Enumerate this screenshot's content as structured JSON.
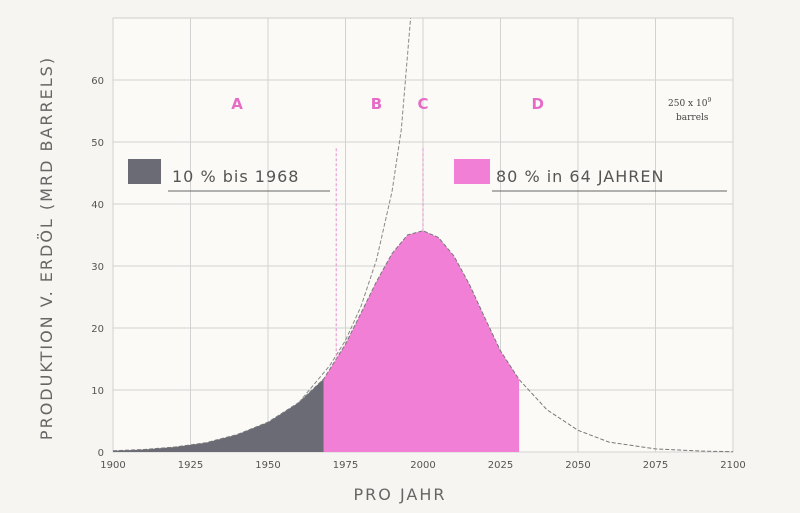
{
  "chart_data": {
    "type": "area",
    "xlabel": "PRO JAHR",
    "ylabel": "PRODUKTION V. ERDÖL (MRD BARRELS)",
    "xlim": [
      1900,
      2100
    ],
    "ylim": [
      0,
      70
    ],
    "x_ticks": [
      "1900",
      "1925",
      "1950",
      "1975",
      "2000",
      "2025",
      "2050",
      "2075",
      "2100"
    ],
    "y_ticks": [
      "0",
      "10",
      "20",
      "30",
      "40",
      "50",
      "60"
    ],
    "grid": true,
    "curve": {
      "peak_year": 2000,
      "peak_value": 35.7,
      "x": [
        1900,
        1910,
        1920,
        1930,
        1940,
        1950,
        1960,
        1968,
        1975,
        1980,
        1985,
        1990,
        1995,
        2000,
        2005,
        2010,
        2015,
        2020,
        2025,
        2031,
        2040,
        2050,
        2060,
        2075,
        2090,
        2100
      ],
      "y": [
        0.2,
        0.4,
        0.8,
        1.5,
        2.8,
        4.8,
        8.0,
        11.8,
        17.4,
        22.4,
        27.5,
        32.0,
        35.0,
        35.7,
        34.6,
        31.6,
        27.0,
        21.6,
        16.3,
        11.7,
        6.8,
        3.5,
        1.6,
        0.5,
        0.15,
        0.05
      ]
    },
    "exponential_curve": {
      "x": [
        1960,
        1970,
        1975,
        1980,
        1985,
        1990,
        1993,
        1996
      ],
      "y": [
        8.0,
        14.0,
        18.0,
        23.5,
        31.0,
        42.0,
        52.0,
        70.0
      ]
    },
    "fills": [
      {
        "label": "10 % bis 1968",
        "from": 1900,
        "to": 1968,
        "color": "#6b6b76"
      },
      {
        "label": "80 % in 64 JAHREN",
        "from": 1968,
        "to": 2031,
        "color": "#f27fd6"
      }
    ],
    "regions": [
      {
        "label": "A",
        "x": 1940
      },
      {
        "label": "B",
        "x": 1985
      },
      {
        "label": "C",
        "x": 2000
      },
      {
        "label": "D",
        "x": 2037
      }
    ],
    "region_dividers": [
      1972,
      2000
    ],
    "annotation": {
      "line1": "250 x 10",
      "sup": "9",
      "line2": "barrels"
    },
    "legend": [
      {
        "label": "10 % bis 1968",
        "color": "#6b6b76"
      },
      {
        "label": "80 % in 64 JAHREN",
        "color": "#f27fd6"
      }
    ]
  }
}
